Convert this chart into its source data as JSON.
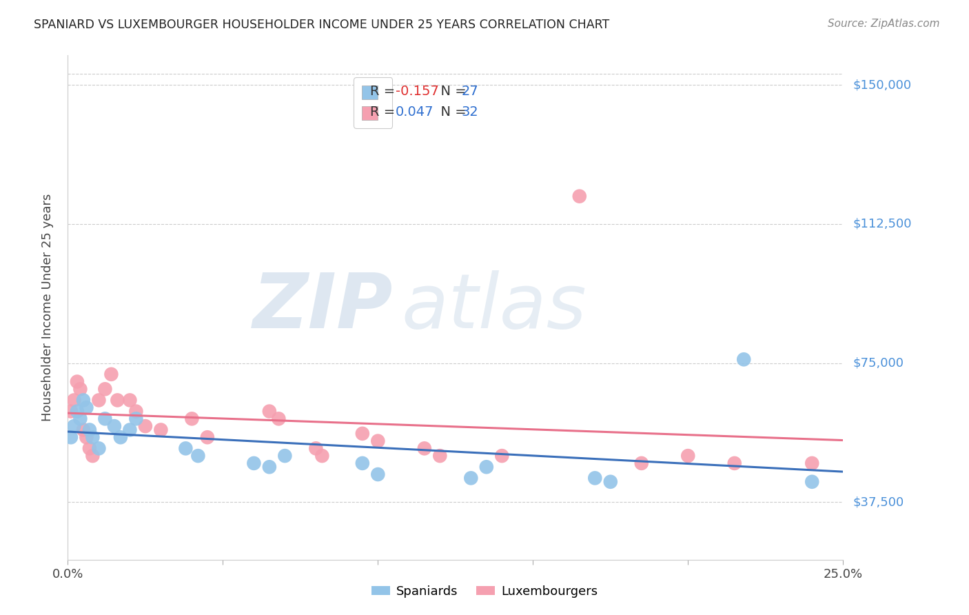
{
  "title": "SPANIARD VS LUXEMBOURGER HOUSEHOLDER INCOME UNDER 25 YEARS CORRELATION CHART",
  "source": "Source: ZipAtlas.com",
  "ylabel": "Householder Income Under 25 years",
  "yticks": [
    37500,
    75000,
    112500,
    150000
  ],
  "ytick_labels": [
    "$37,500",
    "$75,000",
    "$112,500",
    "$150,000"
  ],
  "xmin": 0.0,
  "xmax": 0.25,
  "ymin": 22000,
  "ymax": 158000,
  "spaniards_color": "#93c4e8",
  "luxembourgers_color": "#f5a0b0",
  "spaniards_line_color": "#3a6fba",
  "luxembourgers_line_color": "#e8708a",
  "watermark_zip": "ZIP",
  "watermark_atlas": "atlas",
  "background_color": "#ffffff",
  "grid_color": "#cccccc",
  "spaniards_x": [
    0.001,
    0.002,
    0.003,
    0.004,
    0.005,
    0.006,
    0.007,
    0.008,
    0.01,
    0.012,
    0.015,
    0.017,
    0.02,
    0.022,
    0.038,
    0.042,
    0.06,
    0.065,
    0.07,
    0.095,
    0.1,
    0.13,
    0.135,
    0.17,
    0.175,
    0.218,
    0.24
  ],
  "spaniards_y": [
    55000,
    58000,
    62000,
    60000,
    65000,
    63000,
    57000,
    55000,
    52000,
    60000,
    58000,
    55000,
    57000,
    60000,
    52000,
    50000,
    48000,
    47000,
    50000,
    48000,
    45000,
    44000,
    47000,
    44000,
    43000,
    76000,
    43000
  ],
  "luxembourgers_x": [
    0.001,
    0.002,
    0.003,
    0.004,
    0.005,
    0.006,
    0.007,
    0.008,
    0.01,
    0.012,
    0.014,
    0.016,
    0.02,
    0.022,
    0.025,
    0.03,
    0.04,
    0.045,
    0.065,
    0.068,
    0.08,
    0.082,
    0.095,
    0.1,
    0.115,
    0.12,
    0.14,
    0.165,
    0.185,
    0.2,
    0.215,
    0.24
  ],
  "luxembourgers_y": [
    62000,
    65000,
    70000,
    68000,
    57000,
    55000,
    52000,
    50000,
    65000,
    68000,
    72000,
    65000,
    65000,
    62000,
    58000,
    57000,
    60000,
    55000,
    62000,
    60000,
    52000,
    50000,
    56000,
    54000,
    52000,
    50000,
    50000,
    120000,
    48000,
    50000,
    48000,
    48000
  ],
  "legend1_label_r": "R = ",
  "legend1_r_val": "-0.157",
  "legend1_n": "   N = ",
  "legend1_n_val": "27",
  "legend2_label_r": "R = ",
  "legend2_r_val": "0.047",
  "legend2_n": "   N = ",
  "legend2_n_val": "32"
}
